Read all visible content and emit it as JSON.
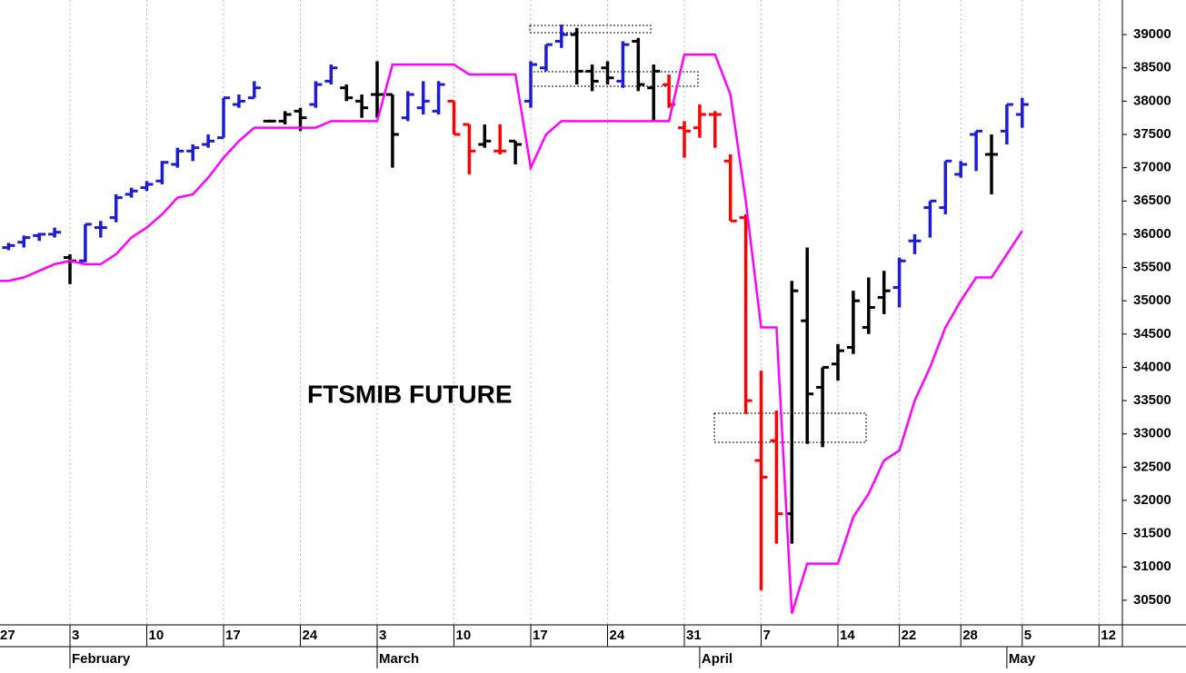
{
  "chart_data": {
    "type": "ohlc",
    "title": "FTSMIB FUTURE",
    "categories": [
      "27",
      null,
      null,
      null,
      null,
      "3",
      null,
      null,
      null,
      null,
      "10",
      null,
      null,
      null,
      null,
      "17",
      null,
      null,
      null,
      null,
      "24",
      null,
      null,
      null,
      null,
      "3",
      null,
      null,
      null,
      null,
      "10",
      null,
      null,
      null,
      null,
      "17",
      null,
      null,
      null,
      null,
      "24",
      null,
      null,
      null,
      null,
      "31",
      null,
      null,
      null,
      null,
      "7",
      null,
      null,
      null,
      null,
      "14",
      null,
      null,
      null,
      "22",
      null,
      null,
      null,
      "28",
      null,
      null,
      null,
      "5",
      null,
      null,
      null,
      null,
      "12"
    ],
    "months": [
      null,
      null,
      null,
      null,
      null,
      "February",
      null,
      null,
      null,
      null,
      null,
      null,
      null,
      null,
      null,
      null,
      null,
      null,
      null,
      null,
      null,
      null,
      null,
      null,
      null,
      "March",
      null,
      null,
      null,
      null,
      null,
      null,
      null,
      null,
      null,
      null,
      null,
      null,
      null,
      null,
      null,
      null,
      null,
      null,
      null,
      null,
      "April",
      null,
      null,
      null,
      null,
      null,
      null,
      null,
      null,
      null,
      null,
      null,
      null,
      null,
      null,
      null,
      null,
      null,
      null,
      null,
      "May",
      null,
      null,
      null,
      null,
      null,
      null
    ],
    "open": [
      35750,
      35800,
      35880,
      35980,
      36000,
      35650,
      35600,
      36100,
      36250,
      36600,
      36700,
      36800,
      37050,
      37250,
      37350,
      37450,
      37950,
      38050,
      37700,
      37700,
      37850,
      37950,
      38300,
      38200,
      38000,
      38100,
      38100,
      37750,
      37900,
      37850,
      38000,
      37650,
      37350,
      37250,
      37400,
      38000,
      38500,
      38900,
      39000,
      38450,
      38500,
      38300,
      38900,
      38200,
      38250,
      37600,
      37600,
      37800,
      37100,
      36250,
      32600,
      32900,
      31800,
      34700,
      33700,
      34050,
      34300,
      34600,
      35050,
      35200,
      35900,
      36400,
      36400,
      36900,
      37500,
      37200,
      37550,
      37800,
      null,
      null,
      null,
      null,
      null
    ],
    "high": [
      35900,
      35870,
      35980,
      36020,
      36100,
      35700,
      36150,
      36200,
      36600,
      36700,
      36800,
      37100,
      37300,
      37350,
      37500,
      38050,
      38100,
      38300,
      37720,
      37850,
      37900,
      38300,
      38550,
      38250,
      38100,
      38600,
      38100,
      38150,
      38300,
      38300,
      38000,
      37650,
      37650,
      37650,
      37400,
      38600,
      38850,
      39150,
      39100,
      38550,
      38600,
      38900,
      38950,
      38550,
      38400,
      37700,
      37950,
      37850,
      37200,
      36300,
      33950,
      33350,
      35300,
      35800,
      34000,
      34350,
      35150,
      35350,
      35450,
      35650,
      36000,
      36500,
      37100,
      37100,
      37550,
      37500,
      37950,
      38050,
      null,
      null,
      null,
      null,
      null
    ],
    "low": [
      35700,
      35760,
      35800,
      35900,
      35950,
      35250,
      35580,
      35950,
      36180,
      36550,
      36650,
      36750,
      37000,
      37100,
      37300,
      37450,
      37900,
      38050,
      37680,
      37650,
      37550,
      37900,
      38250,
      38000,
      37750,
      37750,
      37000,
      37700,
      37800,
      37800,
      37500,
      36900,
      37300,
      37200,
      37050,
      37900,
      38450,
      38800,
      38250,
      38150,
      38250,
      38200,
      38150,
      37700,
      37900,
      37150,
      37450,
      37300,
      36200,
      33300,
      30650,
      31350,
      31350,
      32850,
      32800,
      33800,
      34200,
      34500,
      34800,
      34900,
      35700,
      35950,
      36300,
      36850,
      36950,
      36600,
      37350,
      37600,
      null,
      null,
      null,
      null,
      null
    ],
    "close": [
      35850,
      35830,
      35950,
      36000,
      36030,
      35600,
      36150,
      36100,
      36550,
      36650,
      36750,
      37080,
      37250,
      37300,
      37400,
      38050,
      38000,
      38200,
      37700,
      37800,
      37750,
      38250,
      38500,
      38050,
      37900,
      38100,
      37500,
      38100,
      38000,
      38250,
      37500,
      37250,
      37400,
      37250,
      37350,
      38550,
      38850,
      39000,
      38450,
      38300,
      38350,
      38850,
      38250,
      38450,
      37950,
      37550,
      37800,
      37800,
      36200,
      33500,
      32350,
      31800,
      35150,
      33600,
      34000,
      34250,
      35000,
      34900,
      35150,
      35600,
      35900,
      36500,
      37100,
      37050,
      37550,
      37200,
      37950,
      37950,
      null,
      null,
      null,
      null,
      null
    ],
    "colors": [
      "#1c1cd6",
      "#1c1cd6",
      "#1c1cd6",
      "#1c1cd6",
      "#1c1cd6",
      "#000000",
      "#1c1cd6",
      "#1c1cd6",
      "#1c1cd6",
      "#1c1cd6",
      "#1c1cd6",
      "#1c1cd6",
      "#1c1cd6",
      "#1c1cd6",
      "#1c1cd6",
      "#1c1cd6",
      "#1c1cd6",
      "#1c1cd6",
      "#000000",
      "#000000",
      "#000000",
      "#1c1cd6",
      "#1c1cd6",
      "#000000",
      "#000000",
      "#000000",
      "#000000",
      "#1c1cd6",
      "#1c1cd6",
      "#1c1cd6",
      "#ff0000",
      "#ff0000",
      "#000000",
      "#ff0000",
      "#000000",
      "#1c1cd6",
      "#1c1cd6",
      "#1c1cd6",
      "#000000",
      "#000000",
      "#000000",
      "#1c1cd6",
      "#000000",
      "#000000",
      "#ff0000",
      "#ff0000",
      "#ff0000",
      "#ff0000",
      "#ff0000",
      "#ff0000",
      "#ff0000",
      "#ff0000",
      "#000000",
      "#000000",
      "#000000",
      "#000000",
      "#000000",
      "#000000",
      "#000000",
      "#1c1cd6",
      "#1c1cd6",
      "#1c1cd6",
      "#1c1cd6",
      "#1c1cd6",
      "#1c1cd6",
      "#000000",
      "#1c1cd6",
      "#1c1cd6",
      null,
      null,
      null,
      null,
      null
    ],
    "line": {
      "color": "#ff00ff",
      "values": [
        35300,
        35300,
        35350,
        35450,
        35550,
        35600,
        35550,
        35550,
        35700,
        35950,
        36100,
        36300,
        36550,
        36600,
        36850,
        37150,
        37400,
        37600,
        37600,
        37600,
        37600,
        37600,
        37700,
        37700,
        37700,
        37700,
        38550,
        38550,
        38550,
        38550,
        38550,
        38400,
        38400,
        38400,
        38400,
        37000,
        37500,
        37700,
        37700,
        37700,
        37700,
        37700,
        37700,
        37700,
        37700,
        38700,
        38700,
        38700,
        38100,
        36500,
        34600,
        34600,
        30300,
        31050,
        31050,
        31050,
        31750,
        32100,
        32600,
        32750,
        33500,
        34000,
        34600,
        35000,
        35350,
        35350,
        35700,
        36050,
        null,
        null,
        null,
        null,
        null
      ]
    },
    "ylim": [
      30130,
      39520
    ],
    "yticks": [
      30500,
      31000,
      31500,
      32000,
      32500,
      33000,
      33500,
      34000,
      34500,
      35000,
      35500,
      36000,
      36500,
      37000,
      37500,
      38000,
      38500,
      39000
    ],
    "grid": true
  }
}
